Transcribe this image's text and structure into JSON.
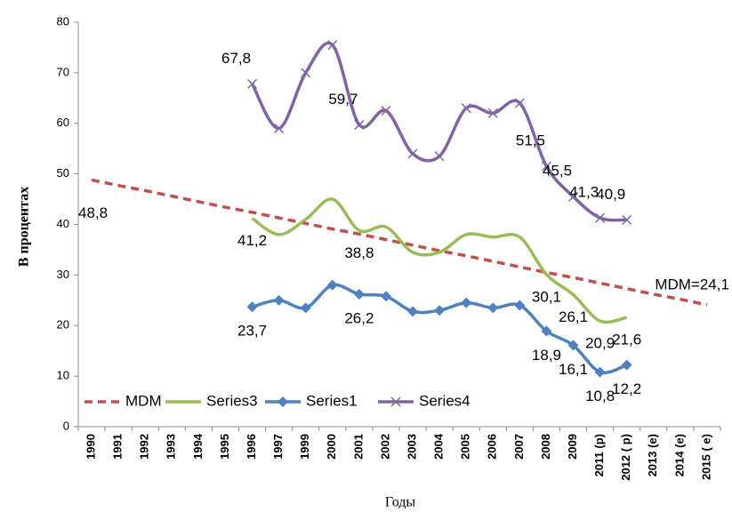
{
  "chart_data": {
    "type": "line",
    "y_label": "В процентах",
    "x_label": "Годы",
    "categories": [
      "1990",
      "1991",
      "1992",
      "1993",
      "1994",
      "1995",
      "1996",
      "1997",
      "1999",
      "2000",
      "2001",
      "2002",
      "2003",
      "2004",
      "2005",
      "2006",
      "2007",
      "2008",
      "2009",
      "2011 (p)",
      "2012 ( p)",
      "2013 (e)",
      "2014 (e)",
      "2015 ( e)"
    ],
    "series": [
      {
        "name": "MDM",
        "color": "#c0504d",
        "line_style": "dashed",
        "smooth": false,
        "marker": "none",
        "values": [
          48.8,
          47.7,
          46.7,
          45.6,
          44.5,
          43.4,
          42.4,
          41.3,
          40.2,
          39.1,
          38.1,
          37.0,
          35.9,
          34.8,
          33.8,
          32.7,
          31.6,
          30.5,
          29.5,
          28.4,
          27.3,
          26.2,
          25.2,
          24.1
        ],
        "value_labels": [
          "48,8",
          null,
          null,
          null,
          null,
          null,
          null,
          null,
          null,
          null,
          null,
          null,
          null,
          null,
          null,
          null,
          null,
          null,
          null,
          null,
          null,
          null,
          null,
          "MDM=24,1"
        ]
      },
      {
        "name": "Series3",
        "color": "#9bbb59",
        "line_style": "solid",
        "smooth": true,
        "marker": "none",
        "values": [
          null,
          null,
          null,
          null,
          null,
          null,
          41.2,
          38,
          41,
          45,
          38.8,
          39.5,
          34.5,
          34.5,
          38,
          37.5,
          37.5,
          30.1,
          26.1,
          20.9,
          21.6,
          null,
          null,
          null
        ],
        "value_labels": [
          null,
          null,
          null,
          null,
          null,
          null,
          "41,2",
          null,
          null,
          null,
          "38,8",
          null,
          null,
          null,
          null,
          null,
          null,
          "30,1",
          "26,1",
          "20,9",
          "21,6",
          null,
          null,
          null
        ]
      },
      {
        "name": "Series1",
        "color": "#4f81bd",
        "line_style": "solid",
        "smooth": true,
        "marker": "diamond",
        "values": [
          null,
          null,
          null,
          null,
          null,
          null,
          23.7,
          25,
          23.5,
          28,
          26.2,
          25.8,
          22.8,
          23,
          24.5,
          23.5,
          24,
          18.9,
          16.1,
          10.8,
          12.2,
          null,
          null,
          null
        ],
        "value_labels": [
          null,
          null,
          null,
          null,
          null,
          null,
          "23,7",
          null,
          null,
          null,
          "26,2",
          null,
          null,
          null,
          null,
          null,
          null,
          "18,9",
          "16,1",
          "10,8",
          "12,2",
          null,
          null,
          null
        ]
      },
      {
        "name": "Series4",
        "color": "#8064a2",
        "line_style": "solid",
        "smooth": true,
        "marker": "x",
        "values": [
          null,
          null,
          null,
          null,
          null,
          null,
          67.8,
          59,
          70,
          75.5,
          59.7,
          62.5,
          54,
          53.5,
          63,
          62,
          64,
          51.5,
          45.5,
          41.3,
          40.9,
          null,
          null,
          null
        ],
        "value_labels": [
          null,
          null,
          null,
          null,
          null,
          null,
          "67,8",
          null,
          null,
          null,
          "59,7",
          null,
          null,
          null,
          null,
          null,
          null,
          "51,5",
          "45,5",
          "41,3",
          "40,9",
          null,
          null,
          null
        ]
      }
    ],
    "ylim": [
      0,
      80
    ],
    "yticks": [
      0,
      10,
      20,
      30,
      40,
      50,
      60,
      70,
      80
    ],
    "grid": false,
    "legend": "bottom"
  }
}
